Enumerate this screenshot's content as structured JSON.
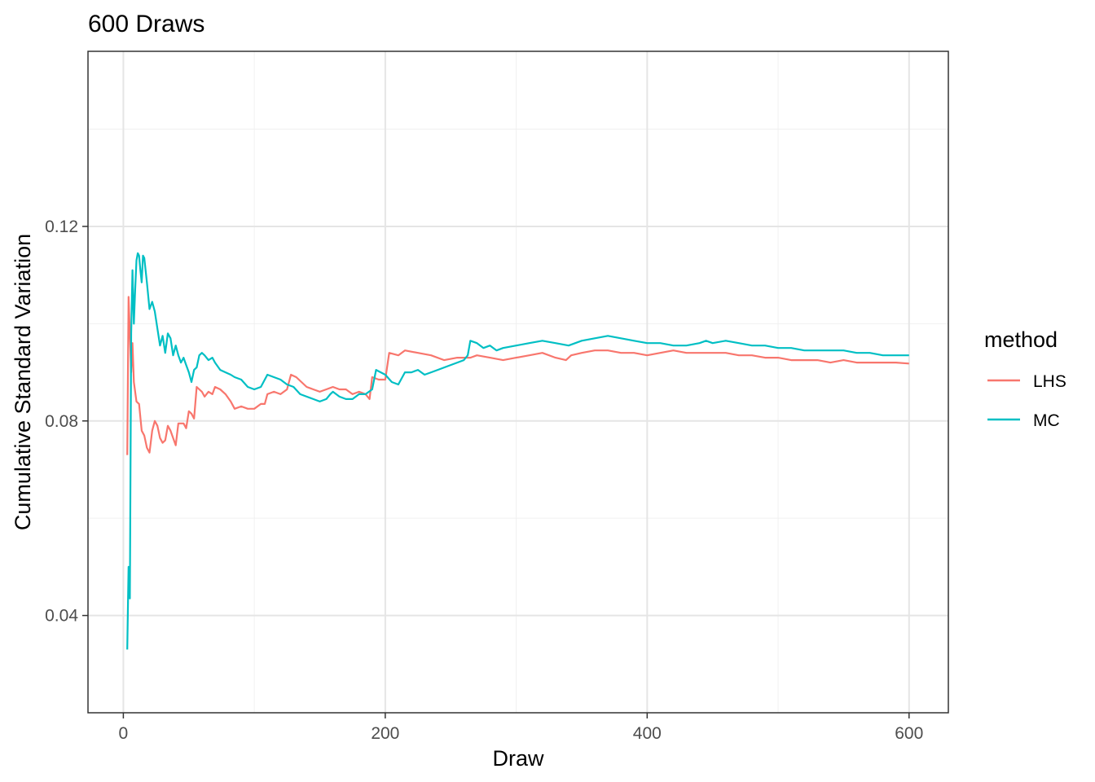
{
  "chart_data": {
    "type": "line",
    "title": "600 Draws",
    "xlabel": "Draw",
    "ylabel": "Cumulative Standard Variation",
    "xlim": [
      -27,
      630
    ],
    "ylim": [
      0.02,
      0.156
    ],
    "xticks": [
      0,
      200,
      400,
      600
    ],
    "xtick_labels": [
      "0",
      "200",
      "400",
      "600"
    ],
    "yticks": [
      0.04,
      0.08,
      0.12
    ],
    "ytick_labels": [
      "0.04",
      "0.08",
      "0.12"
    ],
    "grid": true,
    "legend": {
      "title": "method",
      "position": "right"
    },
    "series": [
      {
        "name": "LHS",
        "color": "#F8766D",
        "points": [
          [
            3,
            0.073
          ],
          [
            4,
            0.1055
          ],
          [
            5,
            0.098
          ],
          [
            6,
            0.09
          ],
          [
            7,
            0.096
          ],
          [
            8,
            0.088
          ],
          [
            10,
            0.084
          ],
          [
            12,
            0.0835
          ],
          [
            14,
            0.078
          ],
          [
            16,
            0.077
          ],
          [
            18,
            0.0745
          ],
          [
            20,
            0.0735
          ],
          [
            22,
            0.078
          ],
          [
            24,
            0.08
          ],
          [
            26,
            0.079
          ],
          [
            28,
            0.0765
          ],
          [
            30,
            0.0755
          ],
          [
            32,
            0.076
          ],
          [
            34,
            0.079
          ],
          [
            36,
            0.078
          ],
          [
            38,
            0.0765
          ],
          [
            40,
            0.075
          ],
          [
            42,
            0.0795
          ],
          [
            44,
            0.0795
          ],
          [
            46,
            0.0795
          ],
          [
            48,
            0.0785
          ],
          [
            50,
            0.082
          ],
          [
            52,
            0.0815
          ],
          [
            54,
            0.0805
          ],
          [
            56,
            0.087
          ],
          [
            58,
            0.0865
          ],
          [
            60,
            0.086
          ],
          [
            62,
            0.085
          ],
          [
            65,
            0.086
          ],
          [
            68,
            0.0855
          ],
          [
            70,
            0.087
          ],
          [
            74,
            0.0865
          ],
          [
            78,
            0.0855
          ],
          [
            82,
            0.084
          ],
          [
            85,
            0.0825
          ],
          [
            90,
            0.083
          ],
          [
            95,
            0.0825
          ],
          [
            100,
            0.0825
          ],
          [
            105,
            0.0835
          ],
          [
            108,
            0.0835
          ],
          [
            110,
            0.0855
          ],
          [
            115,
            0.086
          ],
          [
            120,
            0.0855
          ],
          [
            125,
            0.0865
          ],
          [
            128,
            0.0895
          ],
          [
            132,
            0.089
          ],
          [
            136,
            0.088
          ],
          [
            140,
            0.087
          ],
          [
            145,
            0.0865
          ],
          [
            150,
            0.086
          ],
          [
            155,
            0.0865
          ],
          [
            160,
            0.087
          ],
          [
            165,
            0.0865
          ],
          [
            170,
            0.0865
          ],
          [
            175,
            0.0855
          ],
          [
            180,
            0.086
          ],
          [
            185,
            0.0855
          ],
          [
            188,
            0.0845
          ],
          [
            190,
            0.089
          ],
          [
            195,
            0.0885
          ],
          [
            200,
            0.0885
          ],
          [
            203,
            0.094
          ],
          [
            210,
            0.0935
          ],
          [
            215,
            0.0945
          ],
          [
            225,
            0.094
          ],
          [
            235,
            0.0935
          ],
          [
            245,
            0.0925
          ],
          [
            255,
            0.093
          ],
          [
            265,
            0.093
          ],
          [
            270,
            0.0935
          ],
          [
            280,
            0.093
          ],
          [
            290,
            0.0925
          ],
          [
            300,
            0.093
          ],
          [
            310,
            0.0935
          ],
          [
            320,
            0.094
          ],
          [
            330,
            0.093
          ],
          [
            338,
            0.0925
          ],
          [
            342,
            0.0935
          ],
          [
            350,
            0.094
          ],
          [
            360,
            0.0945
          ],
          [
            370,
            0.0945
          ],
          [
            380,
            0.094
          ],
          [
            390,
            0.094
          ],
          [
            400,
            0.0935
          ],
          [
            410,
            0.094
          ],
          [
            420,
            0.0945
          ],
          [
            430,
            0.094
          ],
          [
            440,
            0.094
          ],
          [
            450,
            0.094
          ],
          [
            460,
            0.094
          ],
          [
            470,
            0.0935
          ],
          [
            480,
            0.0935
          ],
          [
            490,
            0.093
          ],
          [
            500,
            0.093
          ],
          [
            510,
            0.0925
          ],
          [
            520,
            0.0925
          ],
          [
            530,
            0.0925
          ],
          [
            540,
            0.092
          ],
          [
            550,
            0.0925
          ],
          [
            560,
            0.092
          ],
          [
            570,
            0.092
          ],
          [
            580,
            0.092
          ],
          [
            590,
            0.092
          ],
          [
            600,
            0.0918
          ]
        ]
      },
      {
        "name": "MC",
        "color": "#00BFC4",
        "points": [
          [
            3,
            0.033
          ],
          [
            4,
            0.05
          ],
          [
            5,
            0.0435
          ],
          [
            6,
            0.098
          ],
          [
            7,
            0.111
          ],
          [
            8,
            0.1
          ],
          [
            9,
            0.107
          ],
          [
            10,
            0.113
          ],
          [
            11,
            0.1145
          ],
          [
            12,
            0.114
          ],
          [
            13,
            0.111
          ],
          [
            14,
            0.1085
          ],
          [
            15,
            0.114
          ],
          [
            16,
            0.1135
          ],
          [
            18,
            0.1085
          ],
          [
            20,
            0.103
          ],
          [
            22,
            0.1045
          ],
          [
            24,
            0.1025
          ],
          [
            26,
            0.099
          ],
          [
            28,
            0.0955
          ],
          [
            30,
            0.0975
          ],
          [
            32,
            0.094
          ],
          [
            34,
            0.098
          ],
          [
            36,
            0.097
          ],
          [
            38,
            0.0935
          ],
          [
            40,
            0.0955
          ],
          [
            42,
            0.0935
          ],
          [
            44,
            0.092
          ],
          [
            46,
            0.093
          ],
          [
            48,
            0.0915
          ],
          [
            50,
            0.09
          ],
          [
            52,
            0.088
          ],
          [
            54,
            0.0905
          ],
          [
            56,
            0.091
          ],
          [
            58,
            0.0935
          ],
          [
            60,
            0.094
          ],
          [
            62,
            0.0935
          ],
          [
            65,
            0.0925
          ],
          [
            68,
            0.093
          ],
          [
            70,
            0.092
          ],
          [
            74,
            0.0905
          ],
          [
            78,
            0.09
          ],
          [
            82,
            0.0895
          ],
          [
            85,
            0.089
          ],
          [
            90,
            0.0885
          ],
          [
            95,
            0.087
          ],
          [
            100,
            0.0865
          ],
          [
            105,
            0.087
          ],
          [
            108,
            0.0885
          ],
          [
            110,
            0.0895
          ],
          [
            115,
            0.089
          ],
          [
            120,
            0.0885
          ],
          [
            125,
            0.0875
          ],
          [
            130,
            0.087
          ],
          [
            135,
            0.0855
          ],
          [
            140,
            0.085
          ],
          [
            145,
            0.0845
          ],
          [
            150,
            0.084
          ],
          [
            155,
            0.0845
          ],
          [
            158,
            0.0855
          ],
          [
            160,
            0.086
          ],
          [
            165,
            0.085
          ],
          [
            170,
            0.0845
          ],
          [
            175,
            0.0845
          ],
          [
            180,
            0.0855
          ],
          [
            185,
            0.0855
          ],
          [
            190,
            0.0865
          ],
          [
            193,
            0.0905
          ],
          [
            200,
            0.0895
          ],
          [
            205,
            0.088
          ],
          [
            210,
            0.0875
          ],
          [
            215,
            0.09
          ],
          [
            220,
            0.09
          ],
          [
            225,
            0.0905
          ],
          [
            230,
            0.0895
          ],
          [
            235,
            0.09
          ],
          [
            240,
            0.0905
          ],
          [
            245,
            0.091
          ],
          [
            250,
            0.0915
          ],
          [
            255,
            0.092
          ],
          [
            260,
            0.0925
          ],
          [
            263,
            0.0935
          ],
          [
            265,
            0.0965
          ],
          [
            270,
            0.096
          ],
          [
            275,
            0.095
          ],
          [
            280,
            0.0955
          ],
          [
            285,
            0.0945
          ],
          [
            290,
            0.095
          ],
          [
            300,
            0.0955
          ],
          [
            310,
            0.096
          ],
          [
            320,
            0.0965
          ],
          [
            330,
            0.096
          ],
          [
            340,
            0.0955
          ],
          [
            350,
            0.0965
          ],
          [
            360,
            0.097
          ],
          [
            370,
            0.0975
          ],
          [
            380,
            0.097
          ],
          [
            390,
            0.0965
          ],
          [
            400,
            0.096
          ],
          [
            410,
            0.096
          ],
          [
            420,
            0.0955
          ],
          [
            430,
            0.0955
          ],
          [
            440,
            0.096
          ],
          [
            445,
            0.0965
          ],
          [
            450,
            0.096
          ],
          [
            460,
            0.0965
          ],
          [
            470,
            0.096
          ],
          [
            480,
            0.0955
          ],
          [
            490,
            0.0955
          ],
          [
            500,
            0.095
          ],
          [
            510,
            0.095
          ],
          [
            520,
            0.0945
          ],
          [
            530,
            0.0945
          ],
          [
            540,
            0.0945
          ],
          [
            550,
            0.0945
          ],
          [
            560,
            0.094
          ],
          [
            570,
            0.094
          ],
          [
            580,
            0.0935
          ],
          [
            590,
            0.0935
          ],
          [
            600,
            0.0935
          ]
        ]
      }
    ]
  }
}
